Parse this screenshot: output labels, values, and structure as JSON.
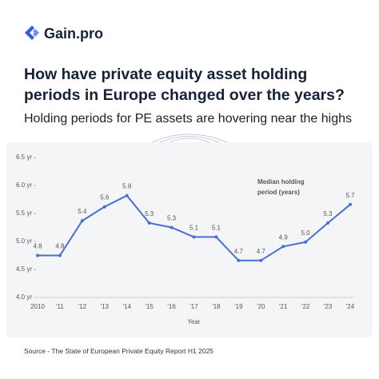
{
  "header": {
    "brand": "Gain.pro",
    "title": [
      "How have private equity asset holding",
      "periods in Europe changed over the years?"
    ],
    "subtitle": "Holding periods for PE assets are hovering near the highs"
  },
  "chart_data": {
    "type": "line",
    "x_label": "Year",
    "annotation": [
      "Median holding",
      "period (years)"
    ],
    "categories": [
      "2010",
      "'11",
      "'12",
      "'13",
      "'14",
      "'15",
      "'16",
      "'17",
      "'18",
      "'19",
      "'20",
      "'21",
      "'22",
      "'23",
      "'24"
    ],
    "series": [
      {
        "name": "Median holding period (years)",
        "color": "#4a6cd4",
        "values": [
          4.75,
          4.75,
          5.37,
          5.62,
          5.82,
          5.33,
          5.25,
          5.08,
          5.08,
          4.66,
          4.66,
          4.91,
          4.99,
          5.33,
          5.66
        ],
        "value_labels": [
          "4.8",
          "4.8",
          "5.4",
          "5.6",
          "5.8",
          "5.3",
          "5.3",
          "5.1",
          "5.1",
          "4.7",
          "4.7",
          "4.9",
          "5.0",
          "5.3",
          "5.7"
        ]
      }
    ],
    "ylim": [
      4.0,
      6.5
    ],
    "yticks": [
      {
        "value": 4.0,
        "label": "4.0 yr"
      },
      {
        "value": 4.5,
        "label": "4.5 yr"
      },
      {
        "value": 5.0,
        "label": "5.0 yr"
      },
      {
        "value": 5.5,
        "label": "5.5 yr"
      },
      {
        "value": 6.0,
        "label": "6.0 yr"
      },
      {
        "value": 6.5,
        "label": "6.5 yr"
      }
    ]
  },
  "footer": {
    "source": "Source - The State of European Private Equity Report H1 2025"
  }
}
